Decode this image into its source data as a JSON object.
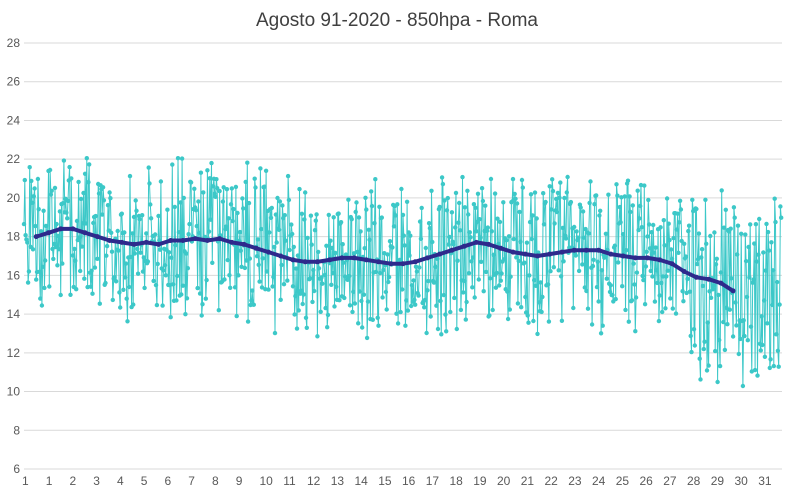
{
  "chart_data": {
    "type": "line",
    "title": "Agosto 91-2020 - 850hpa - Roma",
    "xlabel": "",
    "ylabel": "",
    "ylim": [
      6,
      28
    ],
    "yticks": [
      6,
      8,
      10,
      12,
      14,
      16,
      18,
      20,
      22,
      24,
      26,
      28
    ],
    "xticks": [
      "1",
      "1",
      "2",
      "3",
      "4",
      "5",
      "6",
      "7",
      "8",
      "9",
      "10",
      "11",
      "12",
      "13",
      "14",
      "15",
      "16",
      "17",
      "18",
      "19",
      "20",
      "21",
      "22",
      "23",
      "24",
      "25",
      "26",
      "27",
      "28",
      "29",
      "30",
      "31"
    ],
    "grid": true,
    "legend": "none",
    "series": [
      {
        "style": "daily-values",
        "color": "#3cc8c8",
        "points_per_day": 30,
        "days": 31,
        "note_pattern_seed": 91,
        "values": []
      },
      {
        "style": "running-mean",
        "color": "#2e2a8c",
        "x_day": [
          1.5,
          2,
          2.5,
          3,
          3.5,
          4,
          4.5,
          5,
          5.5,
          6,
          6.5,
          7,
          7.5,
          8,
          8.5,
          9,
          9.5,
          10,
          10.5,
          11,
          11.5,
          12,
          12.5,
          13,
          13.5,
          14,
          14.5,
          15,
          15.5,
          16,
          16.5,
          17,
          17.5,
          18,
          18.5,
          19,
          19.5,
          20,
          20.5,
          21,
          21.5,
          22,
          22.5,
          23,
          23.5,
          24,
          24.5,
          25,
          25.5,
          26,
          26.5,
          27,
          27.5,
          28,
          28.5,
          29,
          29.5,
          30
        ],
        "values": [
          18.0,
          18.2,
          18.4,
          18.4,
          18.2,
          18.0,
          17.8,
          17.7,
          17.6,
          17.7,
          17.6,
          17.8,
          17.8,
          17.9,
          17.8,
          17.9,
          17.7,
          17.6,
          17.4,
          17.2,
          17.0,
          16.8,
          16.7,
          16.7,
          16.8,
          16.9,
          16.9,
          16.8,
          16.7,
          16.6,
          16.6,
          16.7,
          16.9,
          17.1,
          17.3,
          17.5,
          17.7,
          17.6,
          17.4,
          17.2,
          17.1,
          17.0,
          17.1,
          17.2,
          17.3,
          17.3,
          17.3,
          17.1,
          17.0,
          16.9,
          16.9,
          16.8,
          16.6,
          16.2,
          15.9,
          15.8,
          15.6,
          15.2
        ]
      }
    ]
  }
}
